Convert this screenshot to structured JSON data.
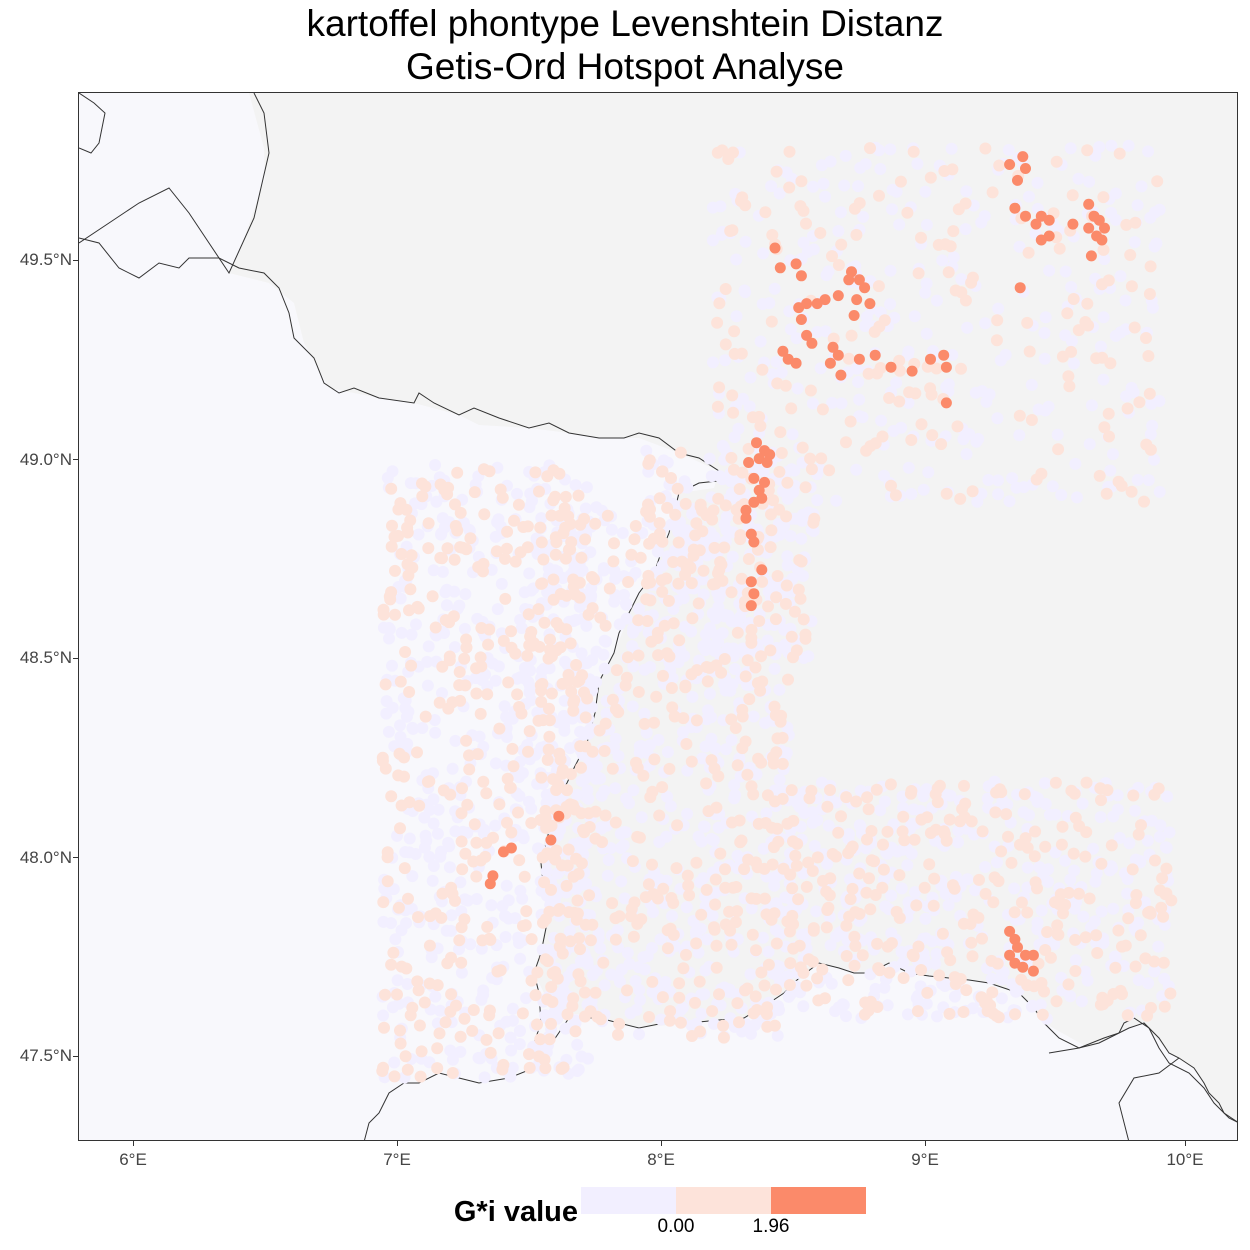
{
  "title": {
    "line1": "kartoffel phontype Levenshtein Distanz",
    "line2": "Getis-Ord Hotspot Analyse"
  },
  "axes": {
    "x_ticks": [
      "6°E",
      "7°E",
      "8°E",
      "9°E",
      "10°E"
    ],
    "y_ticks": [
      "49.5°N",
      "49.0°N",
      "48.5°N",
      "48.0°N",
      "47.5°N"
    ],
    "xlim": [
      5.8,
      10.2
    ],
    "ylim": [
      47.29,
      49.93
    ]
  },
  "legend": {
    "title": "G*i value",
    "colors": [
      "#f2efff",
      "#fde3da",
      "#fb8a6a"
    ],
    "labels": [
      "0.00",
      "1.96"
    ]
  },
  "colors": {
    "panel_bg": "#f8f8fc",
    "germany_bg": "#f3f3f3",
    "border": "#333333",
    "low": "#f2efff",
    "mid": "#fde3da",
    "high": "#fb8a6a"
  },
  "chart_data": {
    "type": "scatter",
    "title": "kartoffel phontype Levenshtein Distanz\nGetis-Ord Hotspot Analyse",
    "xlabel": "",
    "ylabel": "",
    "series": [
      {
        "class": "high",
        "points": [
          [
            8.44,
            49.54
          ],
          [
            8.52,
            49.5
          ],
          [
            8.46,
            49.49
          ],
          [
            8.54,
            49.47
          ],
          [
            8.73,
            49.48
          ],
          [
            8.76,
            49.46
          ],
          [
            8.72,
            49.46
          ],
          [
            8.78,
            49.44
          ],
          [
            8.56,
            49.4
          ],
          [
            8.53,
            49.39
          ],
          [
            8.6,
            49.4
          ],
          [
            8.63,
            49.41
          ],
          [
            8.68,
            49.42
          ],
          [
            8.75,
            49.41
          ],
          [
            8.8,
            49.4
          ],
          [
            8.54,
            49.36
          ],
          [
            8.74,
            49.37
          ],
          [
            8.56,
            49.32
          ],
          [
            8.58,
            49.3
          ],
          [
            8.47,
            49.28
          ],
          [
            8.49,
            49.26
          ],
          [
            8.52,
            49.25
          ],
          [
            8.66,
            49.29
          ],
          [
            8.68,
            49.27
          ],
          [
            8.65,
            49.25
          ],
          [
            8.69,
            49.22
          ],
          [
            8.76,
            49.26
          ],
          [
            8.82,
            49.27
          ],
          [
            8.88,
            49.24
          ],
          [
            8.96,
            49.23
          ],
          [
            9.03,
            49.26
          ],
          [
            9.08,
            49.27
          ],
          [
            9.09,
            49.24
          ],
          [
            9.09,
            49.15
          ],
          [
            9.33,
            49.75
          ],
          [
            9.38,
            49.77
          ],
          [
            9.39,
            49.74
          ],
          [
            9.36,
            49.71
          ],
          [
            9.35,
            49.64
          ],
          [
            9.39,
            49.62
          ],
          [
            9.43,
            49.6
          ],
          [
            9.45,
            49.62
          ],
          [
            9.48,
            49.61
          ],
          [
            9.48,
            49.57
          ],
          [
            9.45,
            49.56
          ],
          [
            9.37,
            49.44
          ],
          [
            9.63,
            49.65
          ],
          [
            9.65,
            49.62
          ],
          [
            9.67,
            49.61
          ],
          [
            9.69,
            49.59
          ],
          [
            9.63,
            49.59
          ],
          [
            9.66,
            49.57
          ],
          [
            9.68,
            49.56
          ],
          [
            9.57,
            49.6
          ],
          [
            9.64,
            49.52
          ],
          [
            8.37,
            49.05
          ],
          [
            8.4,
            49.03
          ],
          [
            8.38,
            49.01
          ],
          [
            8.34,
            49.0
          ],
          [
            8.41,
            49.0
          ],
          [
            8.42,
            49.02
          ],
          [
            8.36,
            48.96
          ],
          [
            8.4,
            48.95
          ],
          [
            8.38,
            48.93
          ],
          [
            8.39,
            48.91
          ],
          [
            8.36,
            48.9
          ],
          [
            8.33,
            48.88
          ],
          [
            8.33,
            48.86
          ],
          [
            8.35,
            48.82
          ],
          [
            8.36,
            48.8
          ],
          [
            8.39,
            48.73
          ],
          [
            8.35,
            48.7
          ],
          [
            8.36,
            48.67
          ],
          [
            8.35,
            48.64
          ],
          [
            7.62,
            48.11
          ],
          [
            7.59,
            48.05
          ],
          [
            7.41,
            48.02
          ],
          [
            7.44,
            48.03
          ],
          [
            7.37,
            47.96
          ],
          [
            7.36,
            47.94
          ],
          [
            9.33,
            47.82
          ],
          [
            9.35,
            47.8
          ],
          [
            9.36,
            47.78
          ],
          [
            9.33,
            47.76
          ],
          [
            9.35,
            47.74
          ],
          [
            9.39,
            47.76
          ],
          [
            9.42,
            47.76
          ],
          [
            9.38,
            47.73
          ],
          [
            9.42,
            47.72
          ]
        ]
      }
    ],
    "classes": [
      "low",
      "mid",
      "high"
    ]
  }
}
